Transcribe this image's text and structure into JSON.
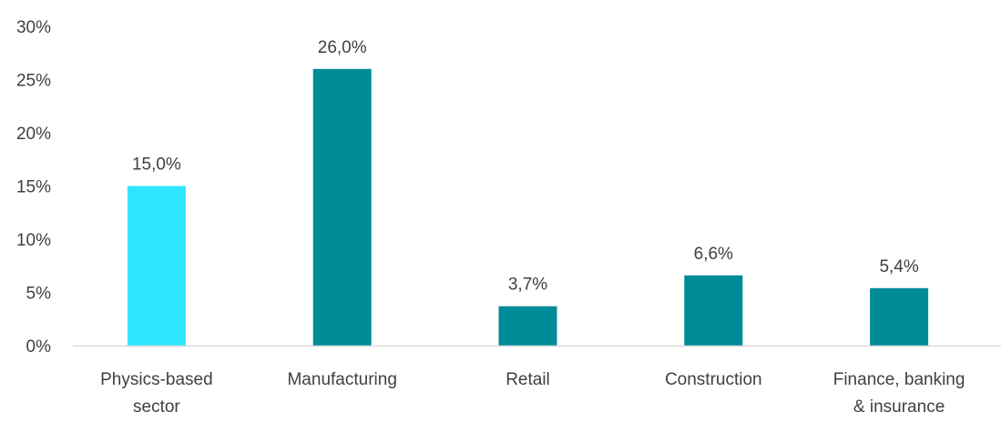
{
  "chart_data": {
    "type": "bar",
    "categories": [
      [
        "Physics-based",
        "sector"
      ],
      [
        "Manufacturing"
      ],
      [
        "Retail"
      ],
      [
        "Construction"
      ],
      [
        "Finance, banking",
        "& insurance"
      ]
    ],
    "values": [
      15.0,
      26.0,
      3.7,
      6.6,
      5.4
    ],
    "data_labels": [
      "15,0%",
      "26,0%",
      "3,7%",
      "6,6%",
      "5,4%"
    ],
    "bar_colors": [
      "#2EE6FF",
      "#008B99",
      "#008B99",
      "#008B99",
      "#008B99"
    ],
    "title": "",
    "xlabel": "",
    "ylabel": "",
    "ylim": [
      0,
      30
    ],
    "yticks": [
      0,
      5,
      10,
      15,
      20,
      25,
      30
    ],
    "ytick_labels": [
      "0%",
      "5%",
      "10%",
      "15%",
      "20%",
      "25%",
      "30%"
    ],
    "grid": false,
    "legend": "none",
    "axis_color": "#D9D9D9"
  }
}
